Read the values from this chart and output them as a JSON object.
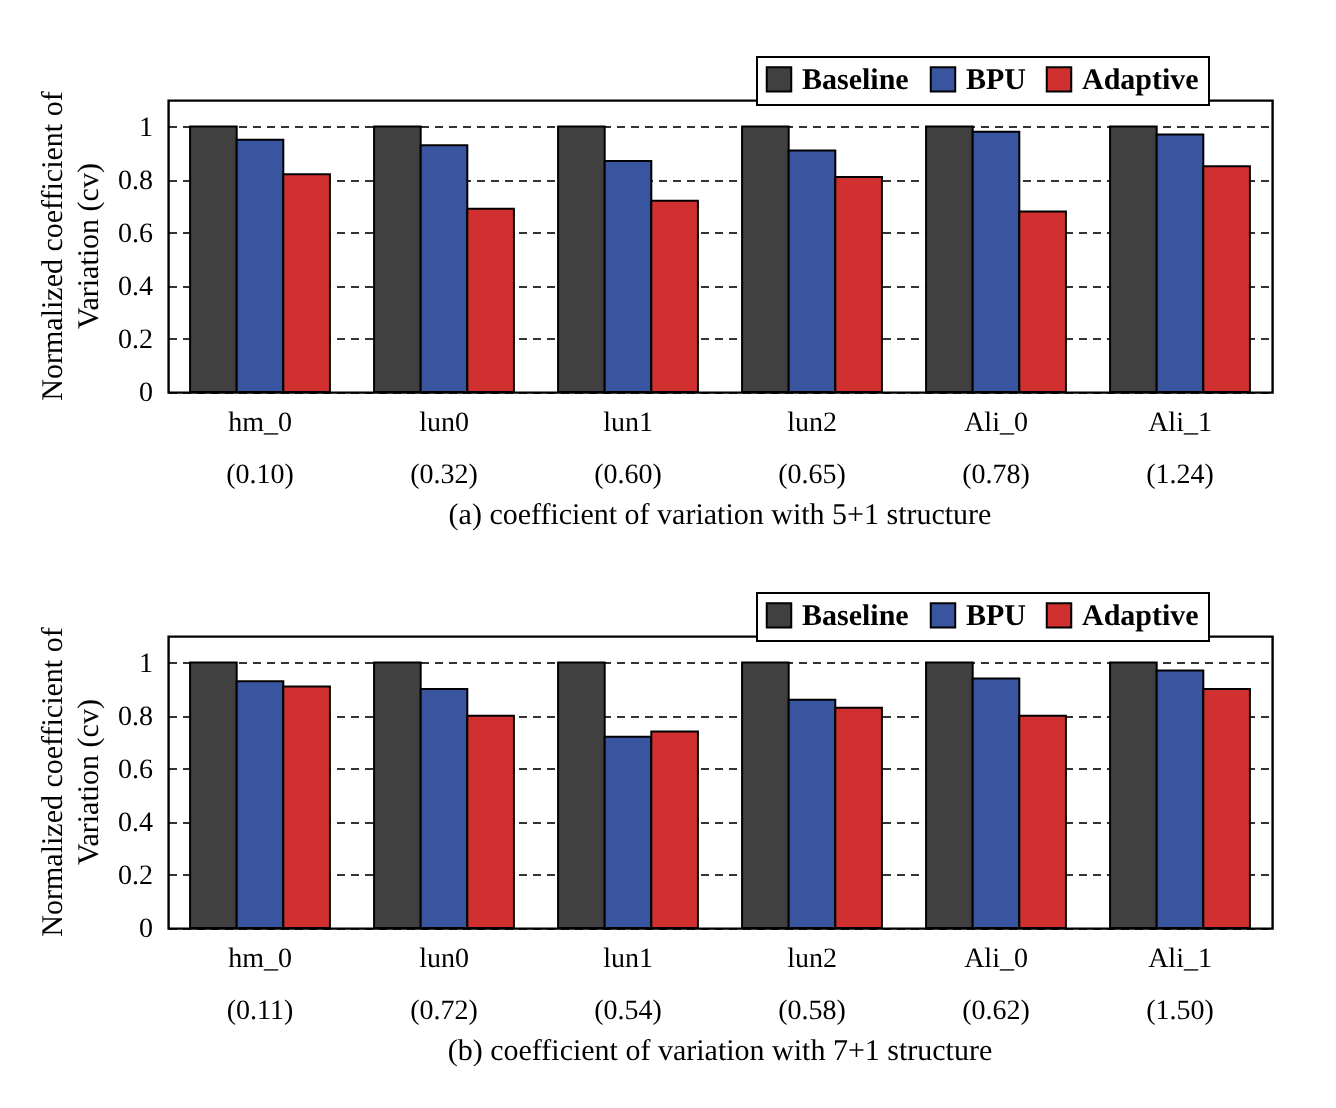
{
  "chart_data": [
    {
      "type": "bar",
      "title": "(a) coefficient of variation with 5+1 structure",
      "ylabel": "Normalized coefficient of\nVariation (cv)",
      "categories": [
        "hm_0\n(0.10)",
        "lun0\n(0.32)",
        "lun1\n(0.60)",
        "lun2\n(0.65)",
        "Ali_0\n(0.78)",
        "Ali_1\n(1.24)"
      ],
      "series": [
        {
          "name": "Baseline",
          "color": "#404040",
          "values": [
            1,
            1,
            1,
            1,
            1,
            1
          ]
        },
        {
          "name": "BPU",
          "color": "#3a55a0",
          "values": [
            0.95,
            0.93,
            0.87,
            0.91,
            0.98,
            0.97
          ]
        },
        {
          "name": "Adaptive",
          "color": "#d03030",
          "values": [
            0.82,
            0.69,
            0.72,
            0.81,
            0.68,
            0.85
          ]
        }
      ],
      "ylim": [
        0,
        1.1
      ],
      "yticks": [
        0,
        0.2,
        0.4,
        0.6,
        0.8,
        1
      ],
      "grid": "y",
      "legend": "top right"
    },
    {
      "type": "bar",
      "title": "(b) coefficient of variation with 7+1 structure",
      "ylabel": "Normalized coefficient of\nVariation (cv)",
      "categories": [
        "hm_0\n(0.11)",
        "lun0\n(0.72)",
        "lun1\n(0.54)",
        "lun2\n(0.58)",
        "Ali_0\n(0.62)",
        "Ali_1\n(1.50)"
      ],
      "series": [
        {
          "name": "Baseline",
          "color": "#404040",
          "values": [
            1,
            1,
            1,
            1,
            1,
            1
          ]
        },
        {
          "name": "BPU",
          "color": "#3a55a0",
          "values": [
            0.93,
            0.9,
            0.72,
            0.86,
            0.94,
            0.97
          ]
        },
        {
          "name": "Adaptive",
          "color": "#d03030",
          "values": [
            0.91,
            0.8,
            0.74,
            0.83,
            0.8,
            0.9
          ]
        }
      ],
      "ylim": [
        0,
        1.1
      ],
      "yticks": [
        0,
        0.2,
        0.4,
        0.6,
        0.8,
        1
      ],
      "grid": "y",
      "legend": "top right"
    }
  ]
}
